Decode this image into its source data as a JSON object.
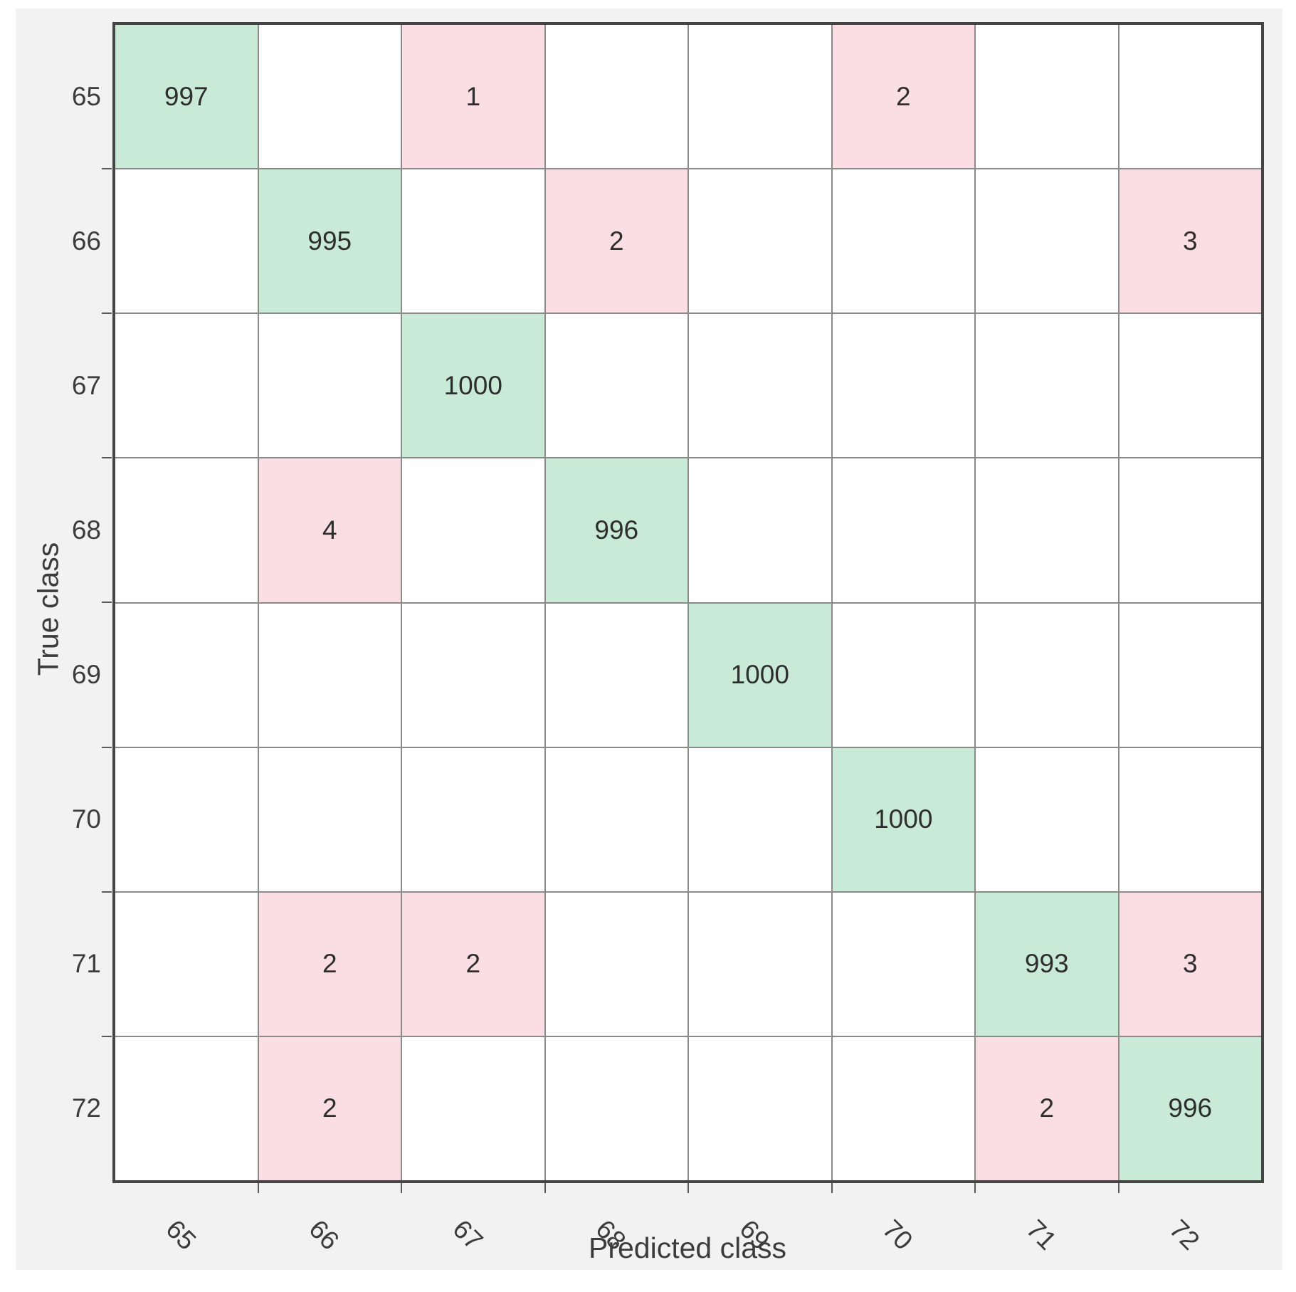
{
  "chart_data": {
    "type": "heatmap",
    "subtype": "confusion-matrix",
    "title": "",
    "xlabel": "Predicted class",
    "ylabel": "True class",
    "classes": [
      "65",
      "66",
      "67",
      "68",
      "69",
      "70",
      "71",
      "72"
    ],
    "matrix": [
      [
        997,
        0,
        1,
        0,
        0,
        2,
        0,
        0
      ],
      [
        0,
        995,
        0,
        2,
        0,
        0,
        0,
        3
      ],
      [
        0,
        0,
        1000,
        0,
        0,
        0,
        0,
        0
      ],
      [
        0,
        4,
        0,
        996,
        0,
        0,
        0,
        0
      ],
      [
        0,
        0,
        0,
        0,
        1000,
        0,
        0,
        0
      ],
      [
        0,
        0,
        0,
        0,
        0,
        1000,
        0,
        0
      ],
      [
        0,
        2,
        2,
        0,
        0,
        0,
        993,
        3
      ],
      [
        0,
        2,
        0,
        0,
        0,
        0,
        2,
        996
      ]
    ],
    "layout": {
      "x_tick_rotation_deg": 45,
      "grid_on": true,
      "legend": "none",
      "cells_hide_zero": true
    },
    "colors": {
      "diagonal_fill": "#c8ead7",
      "offdiag_fill": "#fbdee3",
      "empty_fill": "#ffffff",
      "grid_line": "#8a8a8a",
      "axis_border": "#454545",
      "figure_bg": "#f2f2f2",
      "text": "#3c3c3c"
    }
  }
}
